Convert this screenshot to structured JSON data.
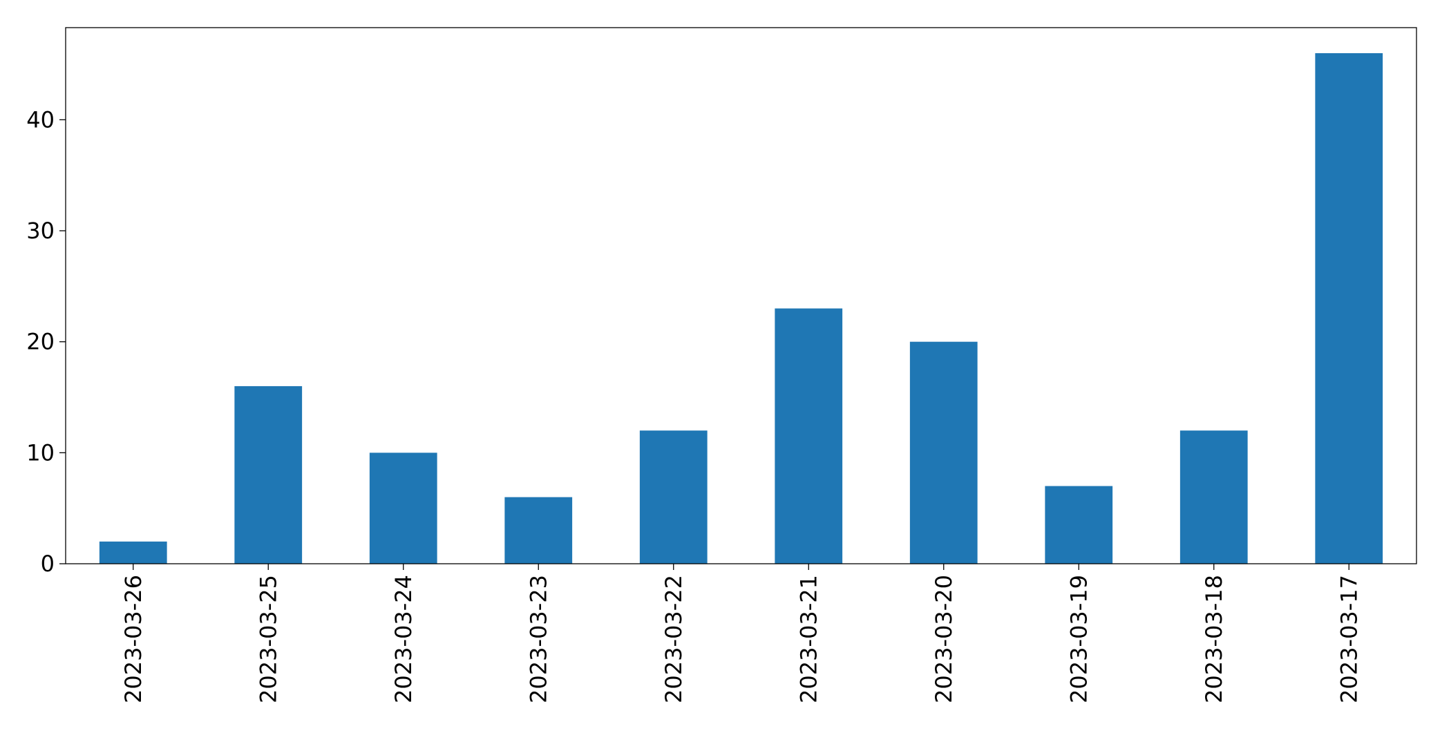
{
  "chart_data": {
    "type": "bar",
    "categories": [
      "2023-03-26",
      "2023-03-25",
      "2023-03-24",
      "2023-03-23",
      "2023-03-22",
      "2023-03-21",
      "2023-03-20",
      "2023-03-19",
      "2023-03-18",
      "2023-03-17"
    ],
    "values": [
      2,
      16,
      10,
      6,
      12,
      23,
      20,
      7,
      12,
      46
    ],
    "color": "#1f77b4",
    "ylim": [
      0,
      48.3
    ],
    "yticks": [
      0,
      10,
      20,
      30,
      40
    ],
    "grid": false
  }
}
